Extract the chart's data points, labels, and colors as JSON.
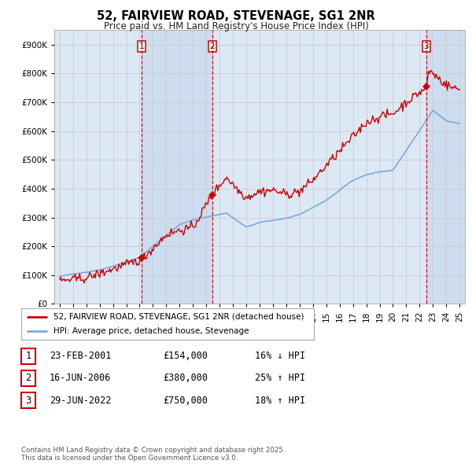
{
  "title": "52, FAIRVIEW ROAD, STEVENAGE, SG1 2NR",
  "subtitle": "Price paid vs. HM Land Registry's House Price Index (HPI)",
  "bg_color": "#ffffff",
  "grid_color": "#cccccc",
  "plot_bg": "#dde8f5",
  "shade_color": "#c8d8ee",
  "line1_color": "#cc0000",
  "line2_color": "#7aaadd",
  "transactions": [
    {
      "num": 1,
      "x_year": 2001.14,
      "price": 154000
    },
    {
      "num": 2,
      "x_year": 2006.46,
      "price": 380000
    },
    {
      "num": 3,
      "x_year": 2022.49,
      "price": 750000
    }
  ],
  "legend_label1": "52, FAIRVIEW ROAD, STEVENAGE, SG1 2NR (detached house)",
  "legend_label2": "HPI: Average price, detached house, Stevenage",
  "footnote": "Contains HM Land Registry data © Crown copyright and database right 2025.\nThis data is licensed under the Open Government Licence v3.0.",
  "table_rows": [
    [
      1,
      "23-FEB-2001",
      "£154,000",
      "16% ↓ HPI"
    ],
    [
      2,
      "16-JUN-2006",
      "£380,000",
      "25% ↑ HPI"
    ],
    [
      3,
      "29-JUN-2022",
      "£750,000",
      "18% ↑ HPI"
    ]
  ],
  "ylim": [
    0,
    950000
  ],
  "xlim_start": 1994.6,
  "xlim_end": 2025.4
}
